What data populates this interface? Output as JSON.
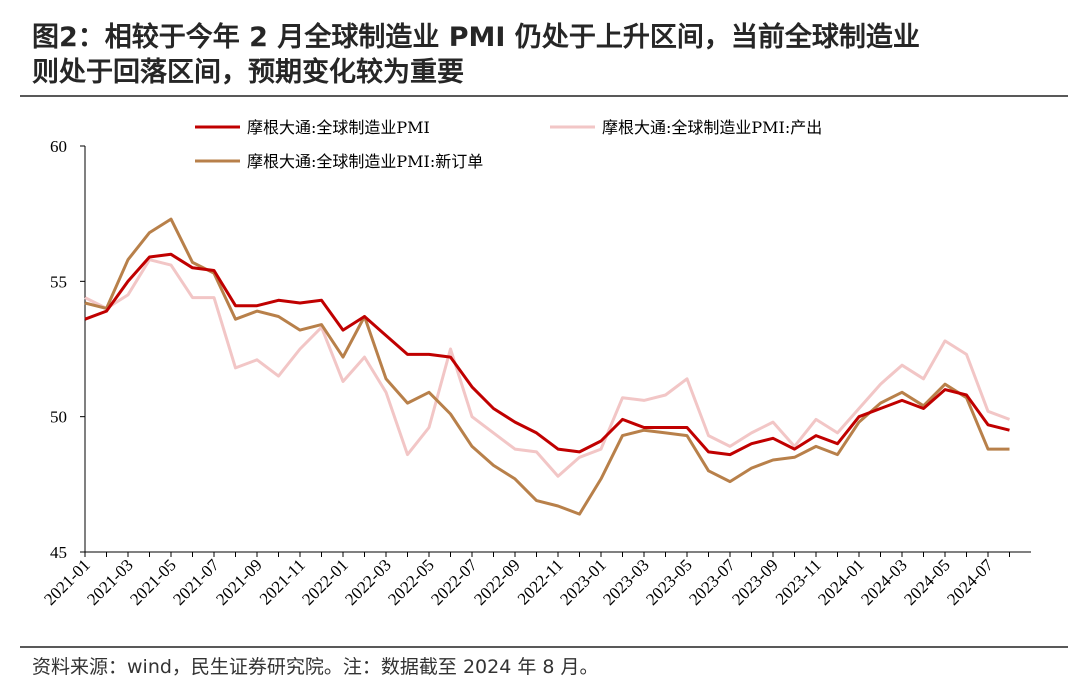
{
  "chart_data": {
    "type": "line",
    "title": [
      "图2：相较于今年 2 月全球制造业 PMI 仍处于上升区间，当前全球制造业",
      "则处于回落区间，预期变化较为重要"
    ],
    "source": "资料来源：wind，民生证券研究院。注：数据截至 2024 年 8 月。",
    "categories": [
      "2021-01",
      null,
      "2021-03",
      null,
      "2021-05",
      null,
      "2021-07",
      null,
      "2021-09",
      null,
      "2021-11",
      null,
      "2022-01",
      null,
      "2022-03",
      null,
      "2022-05",
      null,
      "2022-07",
      null,
      "2022-09",
      null,
      "2022-11",
      null,
      "2023-01",
      null,
      "2023-03",
      null,
      "2023-05",
      null,
      "2023-07",
      null,
      "2023-09",
      null,
      "2023-11",
      null,
      "2024-01",
      null,
      "2024-03",
      null,
      "2024-05",
      null,
      "2024-07",
      null
    ],
    "series": [
      {
        "name": "摩根大通:全球制造业PMI",
        "color": "#c00000",
        "values": [
          53.6,
          53.9,
          55.0,
          55.9,
          56.0,
          55.5,
          55.4,
          54.1,
          54.1,
          54.3,
          54.2,
          54.3,
          53.2,
          53.7,
          53.0,
          52.3,
          52.3,
          52.2,
          51.1,
          50.3,
          49.8,
          49.4,
          48.8,
          48.7,
          49.1,
          49.9,
          49.6,
          49.6,
          49.6,
          48.7,
          48.6,
          49.0,
          49.2,
          48.8,
          49.3,
          49.0,
          50.0,
          50.3,
          50.6,
          50.3,
          51.0,
          50.8,
          49.7,
          49.5
        ]
      },
      {
        "name": "摩根大通:全球制造业PMI:产出",
        "color": "#f2c6c6",
        "values": [
          54.4,
          54.0,
          54.5,
          55.8,
          55.6,
          54.4,
          54.4,
          51.8,
          52.1,
          51.5,
          52.5,
          53.3,
          51.3,
          52.2,
          50.9,
          48.6,
          49.6,
          52.5,
          50.0,
          49.4,
          48.8,
          48.7,
          47.8,
          48.5,
          48.8,
          50.7,
          50.6,
          50.8,
          51.4,
          49.3,
          48.9,
          49.4,
          49.8,
          48.9,
          49.9,
          49.4,
          50.3,
          51.2,
          51.9,
          51.4,
          52.8,
          52.3,
          50.2,
          49.9
        ]
      },
      {
        "name": "摩根大通:全球制造业PMI:新订单",
        "color": "#b8804a",
        "values": [
          54.2,
          54.0,
          55.8,
          56.8,
          57.3,
          55.7,
          55.3,
          53.6,
          53.9,
          53.7,
          53.2,
          53.4,
          52.2,
          53.7,
          51.4,
          50.5,
          50.9,
          50.1,
          48.9,
          48.2,
          47.7,
          46.9,
          46.7,
          46.4,
          47.7,
          49.3,
          49.5,
          49.4,
          49.3,
          48.0,
          47.6,
          48.1,
          48.4,
          48.5,
          48.9,
          48.6,
          49.8,
          50.5,
          50.9,
          50.4,
          51.2,
          50.7,
          48.8,
          48.8
        ]
      }
    ],
    "ylim": [
      45,
      60
    ],
    "yticks": [
      45,
      50,
      55,
      60
    ]
  }
}
